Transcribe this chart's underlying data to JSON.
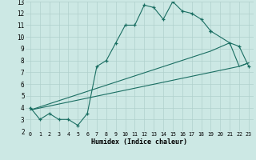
{
  "xlabel": "Humidex (Indice chaleur)",
  "background_color": "#cce8e4",
  "grid_color": "#b0d0cc",
  "line_color": "#1a6e62",
  "xlim": [
    -0.5,
    23.5
  ],
  "ylim": [
    2,
    13
  ],
  "xticks": [
    0,
    1,
    2,
    3,
    4,
    5,
    6,
    7,
    8,
    9,
    10,
    11,
    12,
    13,
    14,
    15,
    16,
    17,
    18,
    19,
    20,
    21,
    22,
    23
  ],
  "yticks": [
    2,
    3,
    4,
    5,
    6,
    7,
    8,
    9,
    10,
    11,
    12,
    13
  ],
  "series": [
    {
      "x": [
        0,
        1,
        2,
        3,
        4,
        5,
        6,
        7,
        8,
        9,
        10,
        11,
        12,
        13,
        14,
        15,
        16,
        17,
        18,
        19
      ],
      "y": [
        4,
        3,
        3.5,
        3,
        3,
        2.5,
        3.5,
        7.5,
        8.0,
        9.5,
        11.0,
        11.0,
        12.7,
        12.5,
        11.5,
        13.0,
        12.2,
        12.0,
        11.5,
        10.5
      ],
      "marker": true
    },
    {
      "x": [
        19,
        21,
        22,
        23
      ],
      "y": [
        10.5,
        9.5,
        9.2,
        7.5
      ],
      "marker": true
    },
    {
      "x": [
        0,
        22,
        23
      ],
      "y": [
        3.8,
        7.5,
        7.8
      ],
      "marker": false
    },
    {
      "x": [
        0,
        19,
        21,
        22,
        23
      ],
      "y": [
        3.8,
        8.8,
        9.5,
        7.5,
        7.8
      ],
      "marker": false
    }
  ]
}
